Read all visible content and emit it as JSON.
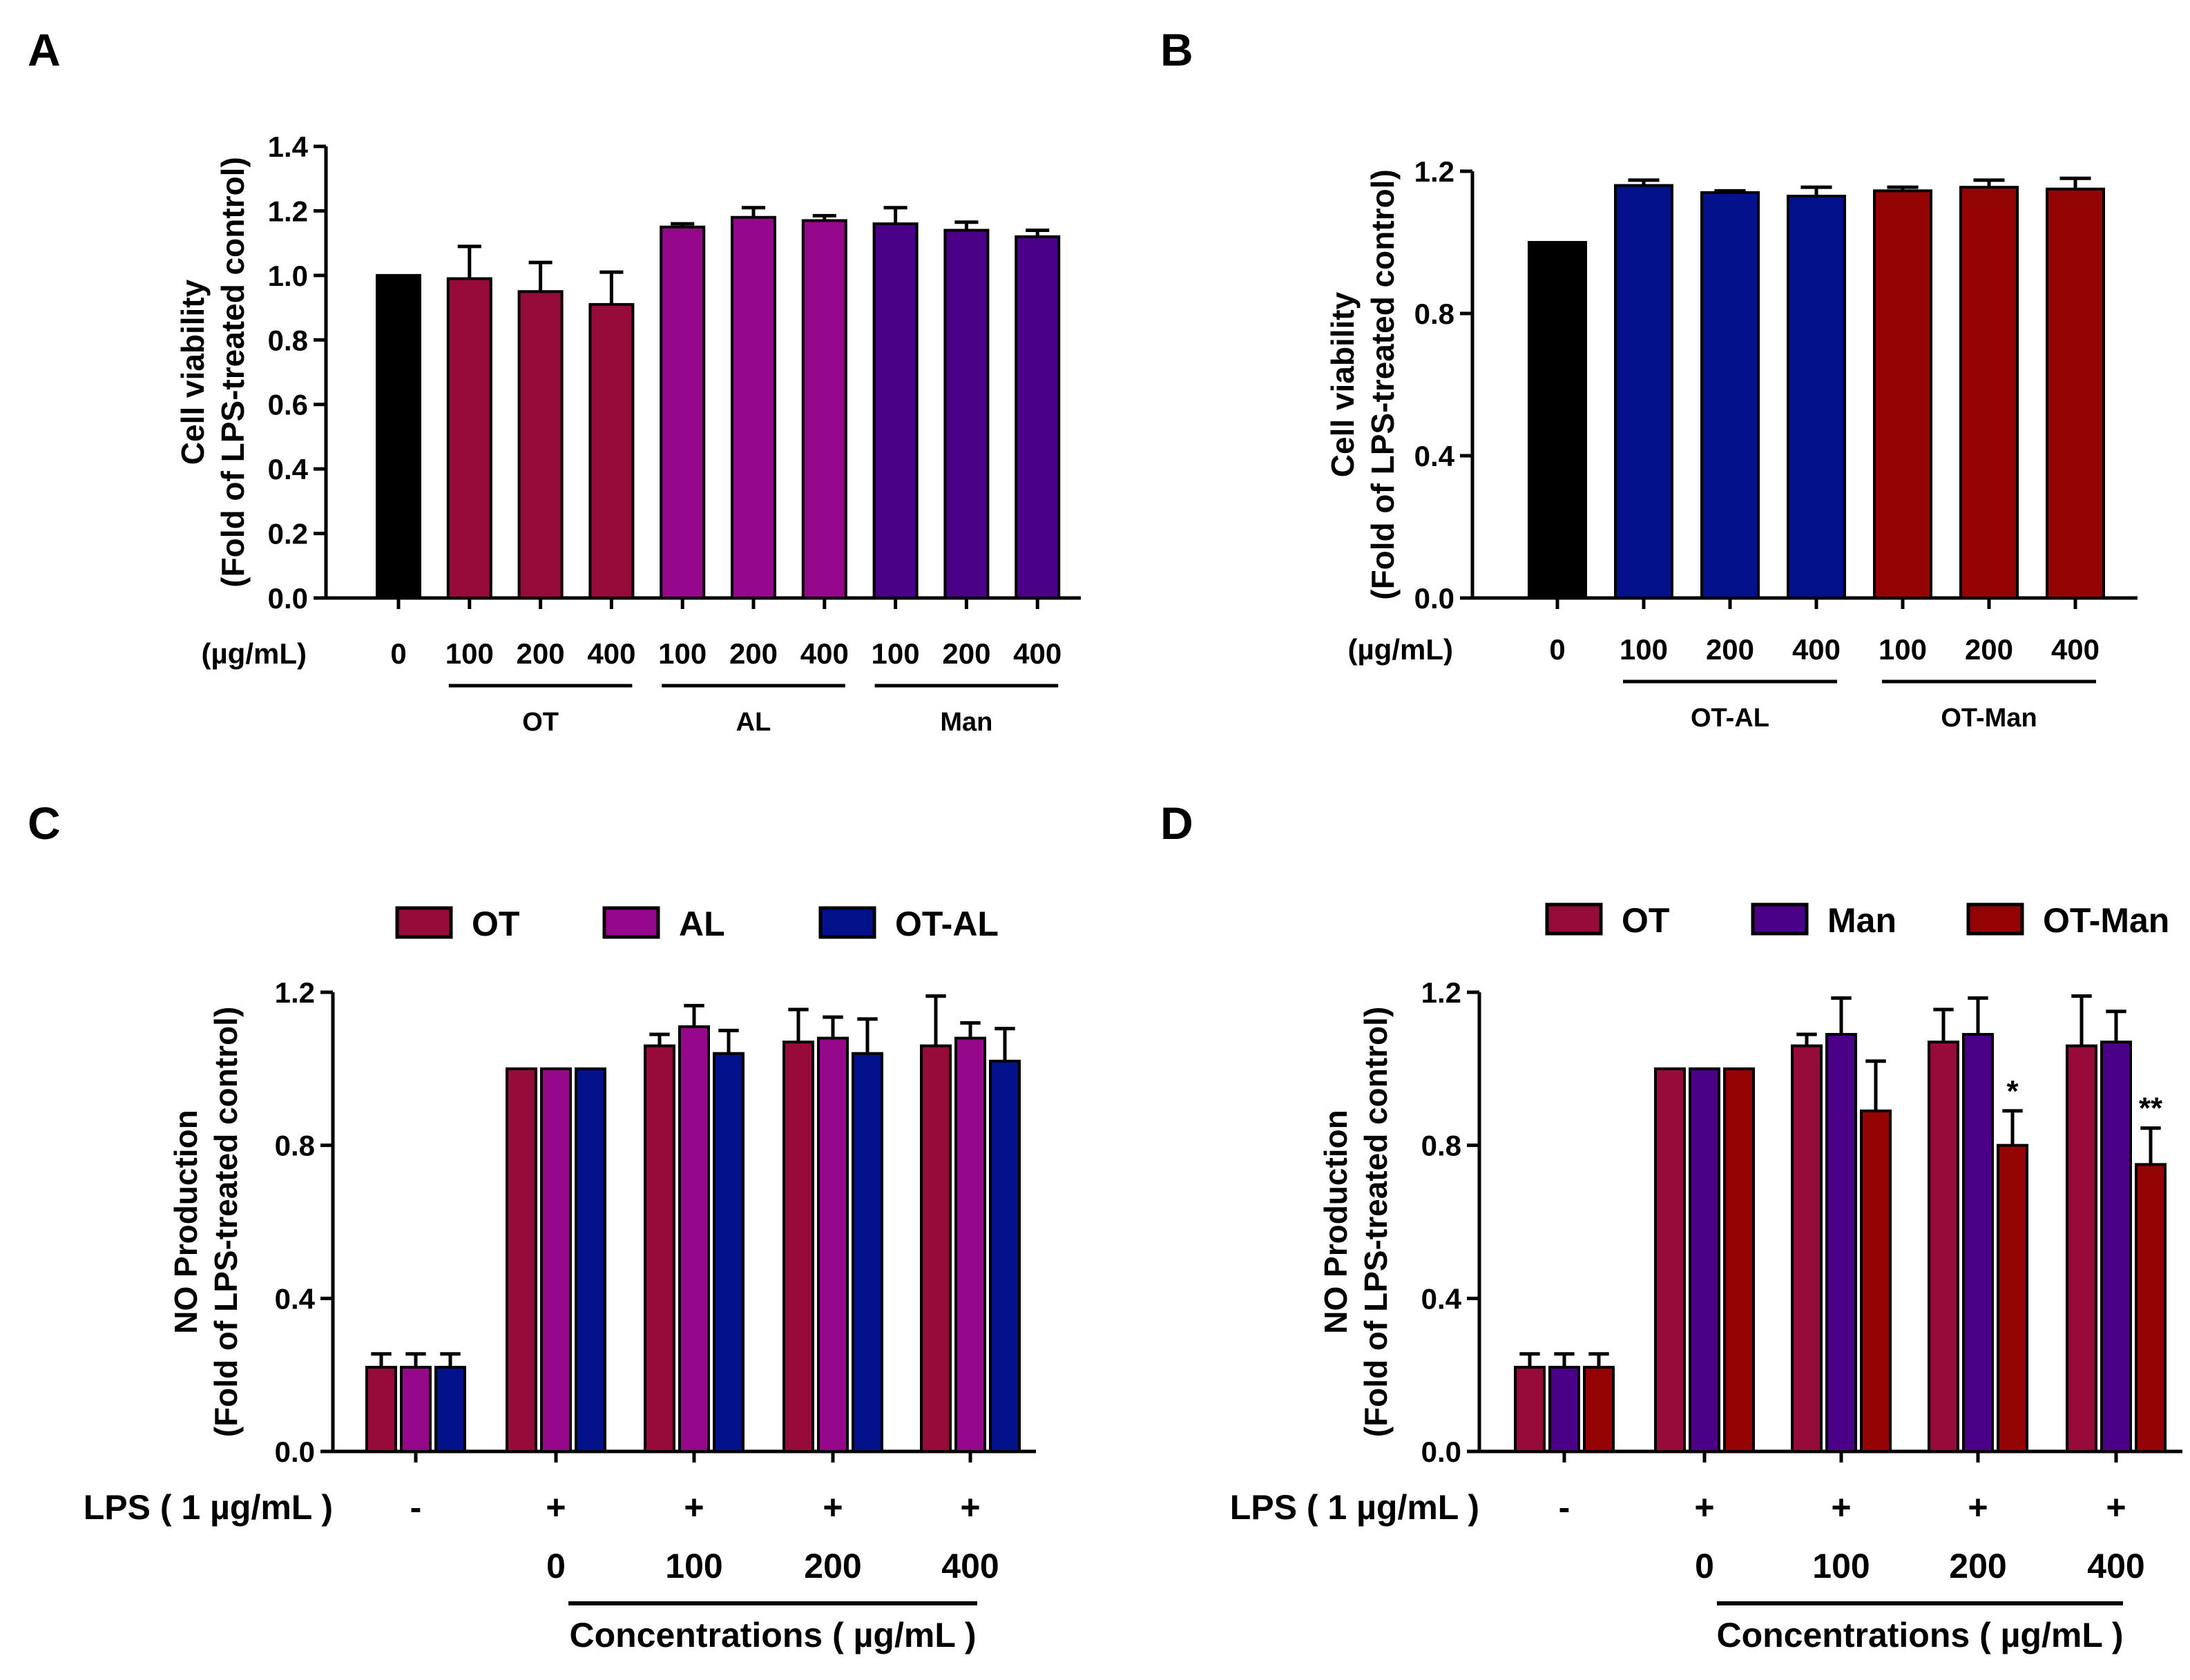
{
  "colors": {
    "control": "#000000",
    "OT": "#960b3a",
    "AL": "#96088b",
    "Man": "#4a0087",
    "OT-AL": "#03118a",
    "OT-Man": "#950404"
  },
  "chart_data": [
    {
      "panel": "A",
      "type": "bar",
      "ylabel": [
        "Cell viability",
        "(Fold of LPS-treated control)"
      ],
      "ylim": [
        0,
        1.4
      ],
      "yticks": [
        "0.0",
        "0.2",
        "0.4",
        "0.6",
        "0.8",
        "1.0",
        "1.2",
        "1.4"
      ],
      "row_label": "(µg/mL)",
      "categories": [
        "0",
        "100",
        "200",
        "400",
        "100",
        "200",
        "400",
        "100",
        "200",
        "400"
      ],
      "values": [
        1.0,
        0.99,
        0.95,
        0.91,
        1.15,
        1.18,
        1.17,
        1.16,
        1.14,
        1.12
      ],
      "errors": [
        0,
        0.1,
        0.09,
        0.1,
        0.01,
        0.03,
        0.015,
        0.05,
        0.025,
        0.02
      ],
      "bar_groups": [
        "control",
        "OT",
        "OT",
        "OT",
        "AL",
        "AL",
        "AL",
        "Man",
        "Man",
        "Man"
      ],
      "group_labels": [
        {
          "label": "OT",
          "from": 1,
          "to": 3
        },
        {
          "label": "AL",
          "from": 4,
          "to": 6
        },
        {
          "label": "Man",
          "from": 7,
          "to": 9
        }
      ]
    },
    {
      "panel": "B",
      "type": "bar",
      "ylabel": [
        "Cell viability",
        "(Fold of LPS-treated control)"
      ],
      "ylim": [
        0,
        1.2
      ],
      "yticks": [
        "0.0",
        "0.4",
        "0.8",
        "1.2"
      ],
      "row_label": "(µg/mL)",
      "categories": [
        "0",
        "100",
        "200",
        "400",
        "100",
        "200",
        "400"
      ],
      "values": [
        1.0,
        1.16,
        1.14,
        1.13,
        1.145,
        1.155,
        1.15
      ],
      "errors": [
        0,
        0.015,
        0.005,
        0.025,
        0.01,
        0.02,
        0.03
      ],
      "bar_groups": [
        "control",
        "OT-AL",
        "OT-AL",
        "OT-AL",
        "OT-Man",
        "OT-Man",
        "OT-Man"
      ],
      "group_labels": [
        {
          "label": "OT-AL",
          "from": 1,
          "to": 3
        },
        {
          "label": "OT-Man",
          "from": 4,
          "to": 6
        }
      ]
    },
    {
      "panel": "C",
      "type": "bar",
      "ylabel": [
        "NO Production",
        "(Fold of LPS-treated control)"
      ],
      "ylim": [
        0,
        1.2
      ],
      "yticks": [
        "0.0",
        "0.4",
        "0.8",
        "1.2"
      ],
      "legend": [
        "OT",
        "AL",
        "OT-AL"
      ],
      "lps_label": "LPS ( 1 µg/mL )",
      "lps_signs": [
        "-",
        "+",
        "+",
        "+",
        "+"
      ],
      "conc_labels": [
        "",
        "0",
        "100",
        "200",
        "400"
      ],
      "conc_title": "Concentrations ( µg/mL )",
      "series": [
        {
          "name": "OT",
          "values": [
            0.22,
            1.0,
            1.06,
            1.07,
            1.06
          ],
          "errors": [
            0.035,
            0,
            0.03,
            0.085,
            0.13
          ],
          "stars": [
            "",
            "",
            "",
            "",
            ""
          ]
        },
        {
          "name": "AL",
          "values": [
            0.22,
            1.0,
            1.11,
            1.08,
            1.08
          ],
          "errors": [
            0.035,
            0,
            0.055,
            0.055,
            0.04
          ],
          "stars": [
            "",
            "",
            "",
            "",
            ""
          ]
        },
        {
          "name": "OT-AL",
          "values": [
            0.22,
            1.0,
            1.04,
            1.04,
            1.02
          ],
          "errors": [
            0.035,
            0,
            0.06,
            0.09,
            0.085
          ],
          "stars": [
            "",
            "",
            "",
            "",
            ""
          ]
        }
      ]
    },
    {
      "panel": "D",
      "type": "bar",
      "ylabel": [
        "NO Production",
        "(Fold of LPS-treated control)"
      ],
      "ylim": [
        0,
        1.2
      ],
      "yticks": [
        "0.0",
        "0.4",
        "0.8",
        "1.2"
      ],
      "legend": [
        "OT",
        "Man",
        "OT-Man"
      ],
      "lps_label": "LPS ( 1 µg/mL )",
      "lps_signs": [
        "-",
        "+",
        "+",
        "+",
        "+"
      ],
      "conc_labels": [
        "",
        "0",
        "100",
        "200",
        "400"
      ],
      "conc_title": "Concentrations ( µg/mL )",
      "series": [
        {
          "name": "OT",
          "values": [
            0.22,
            1.0,
            1.06,
            1.07,
            1.06
          ],
          "errors": [
            0.035,
            0,
            0.03,
            0.085,
            0.13
          ],
          "stars": [
            "",
            "",
            "",
            "",
            ""
          ]
        },
        {
          "name": "Man",
          "values": [
            0.22,
            1.0,
            1.09,
            1.09,
            1.07
          ],
          "errors": [
            0.035,
            0,
            0.095,
            0.095,
            0.08
          ],
          "stars": [
            "",
            "",
            "",
            "",
            ""
          ]
        },
        {
          "name": "OT-Man",
          "values": [
            0.22,
            1.0,
            0.89,
            0.8,
            0.75
          ],
          "errors": [
            0.035,
            0,
            0.13,
            0.09,
            0.095
          ],
          "stars": [
            "",
            "",
            "",
            "*",
            "**"
          ]
        }
      ]
    }
  ]
}
